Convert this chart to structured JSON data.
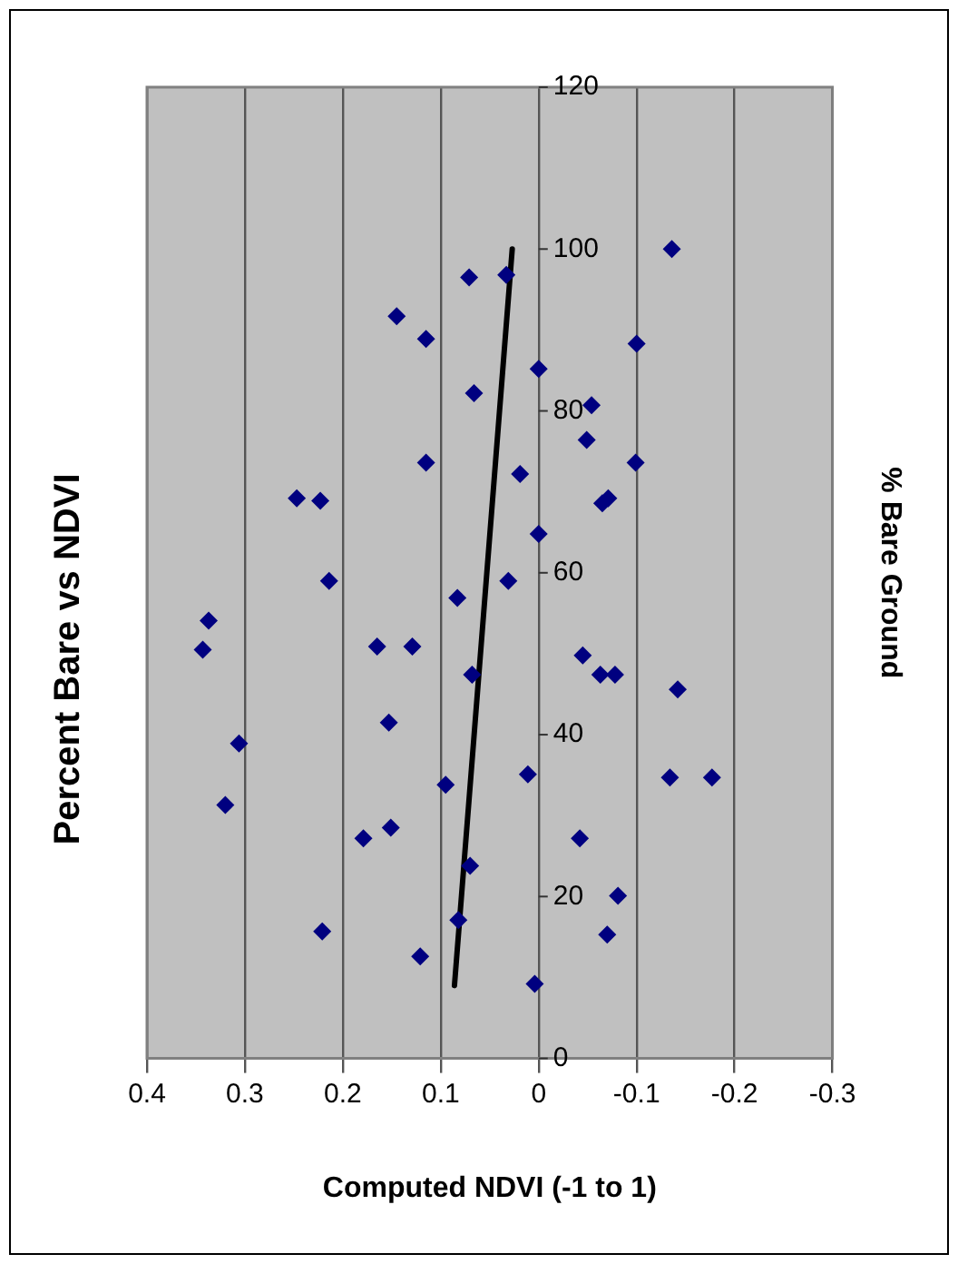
{
  "chart_data": {
    "type": "scatter",
    "title": "Percent Bare vs NDVI",
    "xlabel": "Computed NDVI (-1 to 1)",
    "ylabel": "% Bare Ground",
    "xlim": [
      0.4,
      -0.3
    ],
    "xticks": [
      0.4,
      0.3,
      0.2,
      0.1,
      0,
      -0.1,
      -0.2,
      -0.3
    ],
    "ylim": [
      0,
      120
    ],
    "yticks": [
      0,
      20,
      40,
      60,
      80,
      100,
      120
    ],
    "grid": "x",
    "legend": false,
    "marker": "diamond",
    "series": [
      {
        "type": "scatter",
        "color": "#000080",
        "values": [
          100,
          96.8,
          96.5,
          91.7,
          88.9,
          88.3,
          85.2,
          82.2,
          80.7,
          76.4,
          73.6,
          73.6,
          72.2,
          69.2,
          68.9,
          69.2,
          68.6,
          64.8,
          59.0,
          59.0,
          56.9,
          54.1,
          50.5,
          50.9,
          50.9,
          49.8,
          47.4,
          47.4,
          47.4,
          45.6,
          41.5,
          38.9,
          31.3,
          35.1,
          33.8,
          34.7,
          34.7,
          27.2,
          28.5,
          27.2,
          23.8,
          20.1,
          17.1,
          15.7,
          15.3,
          12.6,
          9.2
        ],
        "x": [
          -0.136,
          0.033,
          0.071,
          0.145,
          0.115,
          -0.1,
          0.0,
          0.066,
          -0.054,
          -0.049,
          0.115,
          -0.099,
          0.019,
          0.247,
          0.223,
          -0.071,
          -0.065,
          0.0,
          0.214,
          0.031,
          0.083,
          0.337,
          0.343,
          0.165,
          0.129,
          -0.045,
          -0.063,
          -0.078,
          0.068,
          -0.142,
          0.153,
          0.306,
          0.32,
          0.011,
          0.095,
          -0.134,
          -0.177,
          0.179,
          0.151,
          -0.042,
          0.07,
          -0.081,
          0.082,
          0.221,
          -0.07,
          0.121,
          0.004
        ]
      },
      {
        "type": "line",
        "color": "#000000",
        "marker": "none",
        "x": [
          0.086,
          0.027
        ],
        "values": [
          9,
          100
        ]
      }
    ]
  }
}
